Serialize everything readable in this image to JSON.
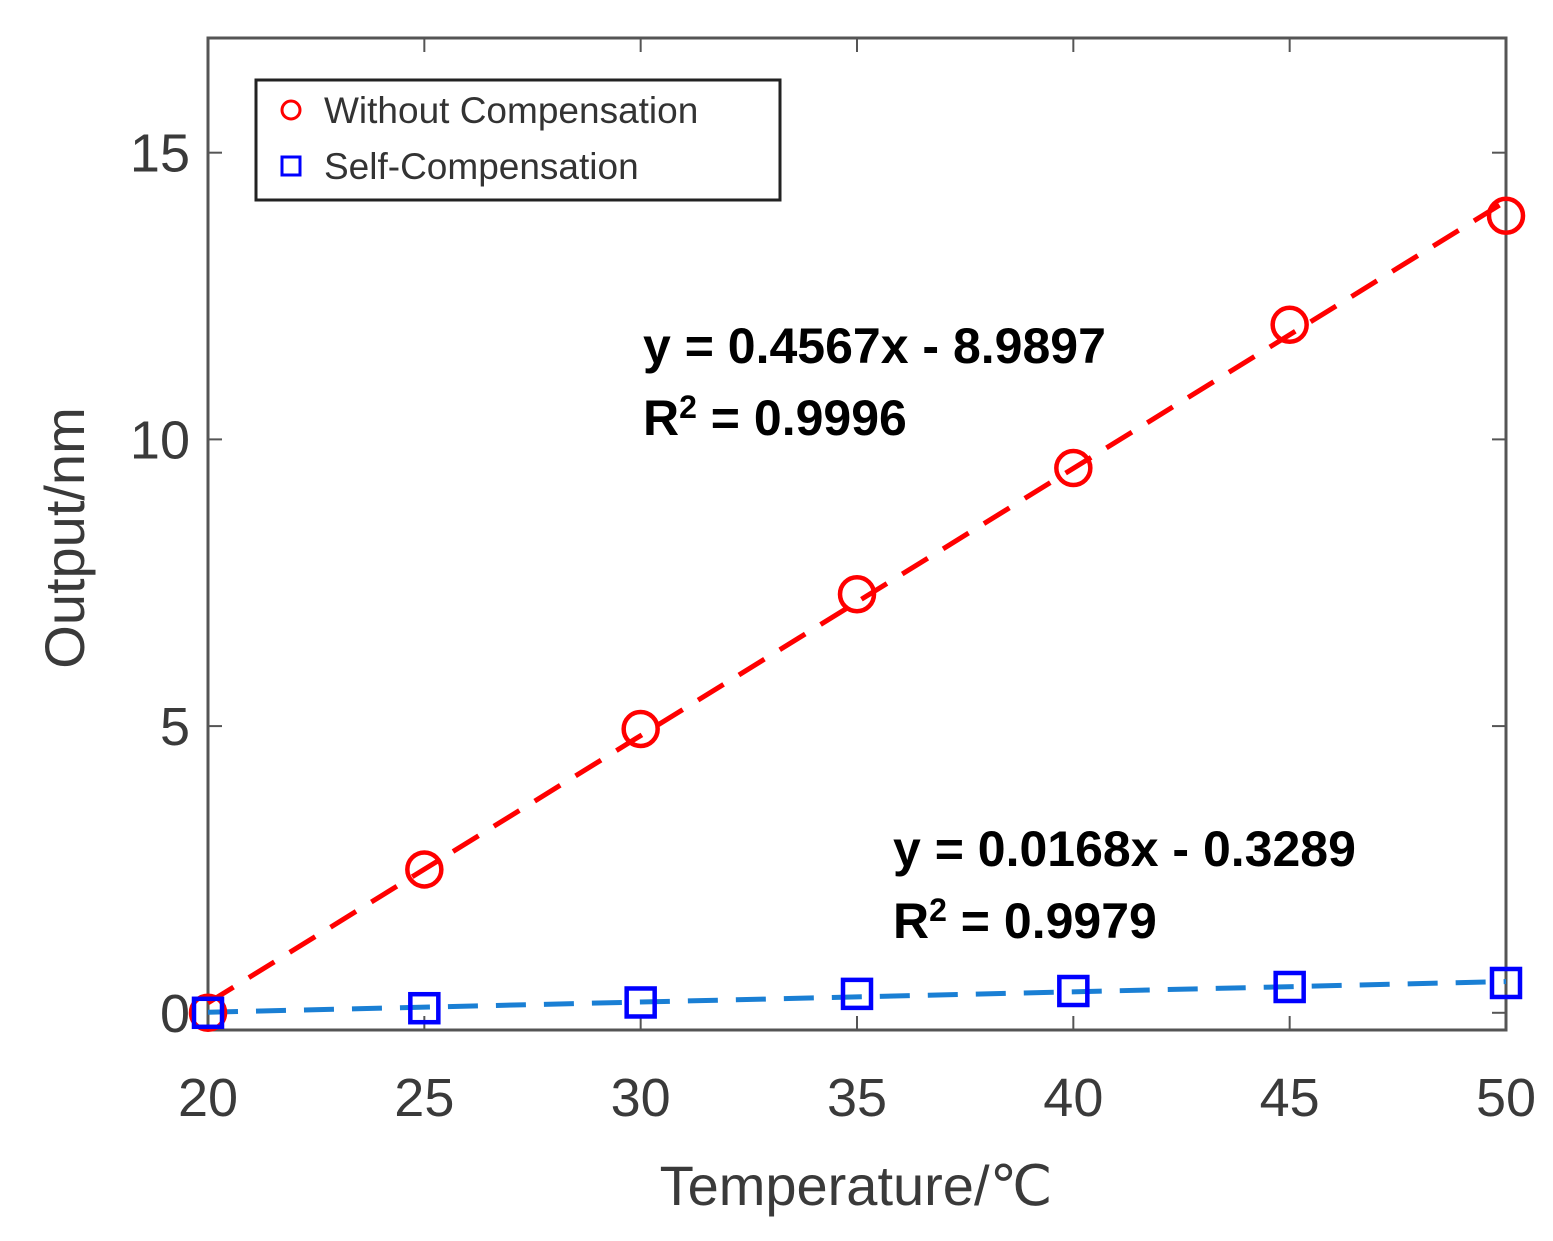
{
  "chart_data": {
    "type": "scatter",
    "xlabel": "Temperature/℃",
    "ylabel": "Output/nm",
    "xlim": [
      20,
      50
    ],
    "ylim": [
      -0.3,
      17
    ],
    "xticks": [
      20,
      25,
      30,
      35,
      40,
      45,
      50
    ],
    "yticks": [
      0,
      5,
      10,
      15
    ],
    "grid": false,
    "legend_position": "top-left",
    "series": [
      {
        "name": "Without Compensation",
        "marker": "circle",
        "color": "#ff0000",
        "x": [
          20,
          25,
          30,
          35,
          40,
          45,
          50
        ],
        "y": [
          0.0,
          2.5,
          4.95,
          7.3,
          9.5,
          12.0,
          13.9
        ],
        "fit": {
          "slope": 0.4567,
          "intercept": -8.9897,
          "line_color": "#ff0000",
          "equation": "y = 0.4567x - 8.9897",
          "r2_label": "R",
          "r2_sup": "2",
          "r2_value": " = 0.9996"
        }
      },
      {
        "name": "Self-Compensation",
        "marker": "square",
        "color": "#0000ff",
        "x": [
          20,
          25,
          30,
          35,
          40,
          45,
          50
        ],
        "y": [
          0.0,
          0.08,
          0.18,
          0.33,
          0.38,
          0.45,
          0.52
        ],
        "fit": {
          "slope": 0.0168,
          "intercept": -0.3289,
          "line_color": "#1a7fd4",
          "equation": "y = 0.0168x - 0.3289",
          "r2_label": "R",
          "r2_sup": "2",
          "r2_value": " = 0.9979"
        }
      }
    ]
  }
}
